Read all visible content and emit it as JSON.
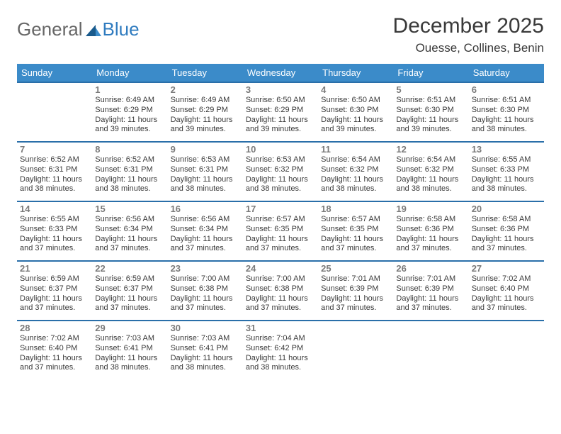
{
  "logo": {
    "text1": "General",
    "text2": "Blue"
  },
  "title": {
    "month": "December 2025",
    "location": "Ouesse, Collines, Benin"
  },
  "colors": {
    "header_bg": "#3b8bc9",
    "header_text": "#ffffff",
    "cell_border": "#2a6fa9",
    "daynum_color": "#7a7a7a",
    "body_text": "#3a3a3a"
  },
  "weekdays": [
    "Sunday",
    "Monday",
    "Tuesday",
    "Wednesday",
    "Thursday",
    "Friday",
    "Saturday"
  ],
  "weeks": [
    [
      null,
      {
        "d": "1",
        "sr": "Sunrise: 6:49 AM",
        "ss": "Sunset: 6:29 PM",
        "dl1": "Daylight: 11 hours",
        "dl2": "and 39 minutes."
      },
      {
        "d": "2",
        "sr": "Sunrise: 6:49 AM",
        "ss": "Sunset: 6:29 PM",
        "dl1": "Daylight: 11 hours",
        "dl2": "and 39 minutes."
      },
      {
        "d": "3",
        "sr": "Sunrise: 6:50 AM",
        "ss": "Sunset: 6:29 PM",
        "dl1": "Daylight: 11 hours",
        "dl2": "and 39 minutes."
      },
      {
        "d": "4",
        "sr": "Sunrise: 6:50 AM",
        "ss": "Sunset: 6:30 PM",
        "dl1": "Daylight: 11 hours",
        "dl2": "and 39 minutes."
      },
      {
        "d": "5",
        "sr": "Sunrise: 6:51 AM",
        "ss": "Sunset: 6:30 PM",
        "dl1": "Daylight: 11 hours",
        "dl2": "and 39 minutes."
      },
      {
        "d": "6",
        "sr": "Sunrise: 6:51 AM",
        "ss": "Sunset: 6:30 PM",
        "dl1": "Daylight: 11 hours",
        "dl2": "and 38 minutes."
      }
    ],
    [
      {
        "d": "7",
        "sr": "Sunrise: 6:52 AM",
        "ss": "Sunset: 6:31 PM",
        "dl1": "Daylight: 11 hours",
        "dl2": "and 38 minutes."
      },
      {
        "d": "8",
        "sr": "Sunrise: 6:52 AM",
        "ss": "Sunset: 6:31 PM",
        "dl1": "Daylight: 11 hours",
        "dl2": "and 38 minutes."
      },
      {
        "d": "9",
        "sr": "Sunrise: 6:53 AM",
        "ss": "Sunset: 6:31 PM",
        "dl1": "Daylight: 11 hours",
        "dl2": "and 38 minutes."
      },
      {
        "d": "10",
        "sr": "Sunrise: 6:53 AM",
        "ss": "Sunset: 6:32 PM",
        "dl1": "Daylight: 11 hours",
        "dl2": "and 38 minutes."
      },
      {
        "d": "11",
        "sr": "Sunrise: 6:54 AM",
        "ss": "Sunset: 6:32 PM",
        "dl1": "Daylight: 11 hours",
        "dl2": "and 38 minutes."
      },
      {
        "d": "12",
        "sr": "Sunrise: 6:54 AM",
        "ss": "Sunset: 6:32 PM",
        "dl1": "Daylight: 11 hours",
        "dl2": "and 38 minutes."
      },
      {
        "d": "13",
        "sr": "Sunrise: 6:55 AM",
        "ss": "Sunset: 6:33 PM",
        "dl1": "Daylight: 11 hours",
        "dl2": "and 38 minutes."
      }
    ],
    [
      {
        "d": "14",
        "sr": "Sunrise: 6:55 AM",
        "ss": "Sunset: 6:33 PM",
        "dl1": "Daylight: 11 hours",
        "dl2": "and 37 minutes."
      },
      {
        "d": "15",
        "sr": "Sunrise: 6:56 AM",
        "ss": "Sunset: 6:34 PM",
        "dl1": "Daylight: 11 hours",
        "dl2": "and 37 minutes."
      },
      {
        "d": "16",
        "sr": "Sunrise: 6:56 AM",
        "ss": "Sunset: 6:34 PM",
        "dl1": "Daylight: 11 hours",
        "dl2": "and 37 minutes."
      },
      {
        "d": "17",
        "sr": "Sunrise: 6:57 AM",
        "ss": "Sunset: 6:35 PM",
        "dl1": "Daylight: 11 hours",
        "dl2": "and 37 minutes."
      },
      {
        "d": "18",
        "sr": "Sunrise: 6:57 AM",
        "ss": "Sunset: 6:35 PM",
        "dl1": "Daylight: 11 hours",
        "dl2": "and 37 minutes."
      },
      {
        "d": "19",
        "sr": "Sunrise: 6:58 AM",
        "ss": "Sunset: 6:36 PM",
        "dl1": "Daylight: 11 hours",
        "dl2": "and 37 minutes."
      },
      {
        "d": "20",
        "sr": "Sunrise: 6:58 AM",
        "ss": "Sunset: 6:36 PM",
        "dl1": "Daylight: 11 hours",
        "dl2": "and 37 minutes."
      }
    ],
    [
      {
        "d": "21",
        "sr": "Sunrise: 6:59 AM",
        "ss": "Sunset: 6:37 PM",
        "dl1": "Daylight: 11 hours",
        "dl2": "and 37 minutes."
      },
      {
        "d": "22",
        "sr": "Sunrise: 6:59 AM",
        "ss": "Sunset: 6:37 PM",
        "dl1": "Daylight: 11 hours",
        "dl2": "and 37 minutes."
      },
      {
        "d": "23",
        "sr": "Sunrise: 7:00 AM",
        "ss": "Sunset: 6:38 PM",
        "dl1": "Daylight: 11 hours",
        "dl2": "and 37 minutes."
      },
      {
        "d": "24",
        "sr": "Sunrise: 7:00 AM",
        "ss": "Sunset: 6:38 PM",
        "dl1": "Daylight: 11 hours",
        "dl2": "and 37 minutes."
      },
      {
        "d": "25",
        "sr": "Sunrise: 7:01 AM",
        "ss": "Sunset: 6:39 PM",
        "dl1": "Daylight: 11 hours",
        "dl2": "and 37 minutes."
      },
      {
        "d": "26",
        "sr": "Sunrise: 7:01 AM",
        "ss": "Sunset: 6:39 PM",
        "dl1": "Daylight: 11 hours",
        "dl2": "and 37 minutes."
      },
      {
        "d": "27",
        "sr": "Sunrise: 7:02 AM",
        "ss": "Sunset: 6:40 PM",
        "dl1": "Daylight: 11 hours",
        "dl2": "and 37 minutes."
      }
    ],
    [
      {
        "d": "28",
        "sr": "Sunrise: 7:02 AM",
        "ss": "Sunset: 6:40 PM",
        "dl1": "Daylight: 11 hours",
        "dl2": "and 37 minutes."
      },
      {
        "d": "29",
        "sr": "Sunrise: 7:03 AM",
        "ss": "Sunset: 6:41 PM",
        "dl1": "Daylight: 11 hours",
        "dl2": "and 38 minutes."
      },
      {
        "d": "30",
        "sr": "Sunrise: 7:03 AM",
        "ss": "Sunset: 6:41 PM",
        "dl1": "Daylight: 11 hours",
        "dl2": "and 38 minutes."
      },
      {
        "d": "31",
        "sr": "Sunrise: 7:04 AM",
        "ss": "Sunset: 6:42 PM",
        "dl1": "Daylight: 11 hours",
        "dl2": "and 38 minutes."
      },
      null,
      null,
      null
    ]
  ]
}
